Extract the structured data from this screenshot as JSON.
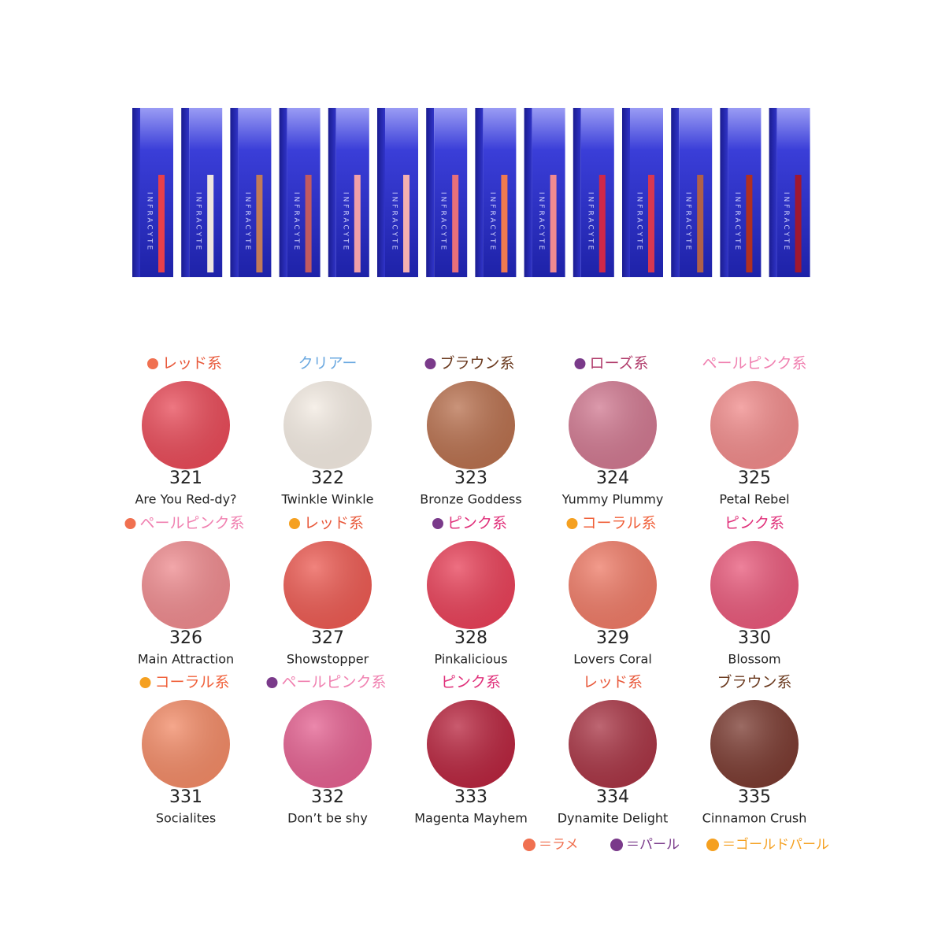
{
  "tube_brand": "INFRACYTE",
  "swatches": [
    {
      "category": "レッド系",
      "label_color": "#e8583a",
      "dot": "#f07050",
      "number": "321",
      "name": "Are You Red-dy?",
      "color": "#e84a58"
    },
    {
      "category": "クリアー",
      "label_color": "#6aa8e0",
      "number": "322",
      "name": "Twinkle Winkle",
      "color": "#f3ebe2"
    },
    {
      "category": "ブラウン系",
      "label_color": "#6b3a1f",
      "dot": "#7a3a8a",
      "number": "323",
      "name": "Bronze Goddess",
      "color": "#b8704e"
    },
    {
      "category": "ローズ系",
      "label_color": "#b03a6a",
      "dot": "#7a3a8a",
      "number": "324",
      "name": "Yummy Plummy",
      "color": "#d07890"
    },
    {
      "category": "ペールピンク系",
      "label_color": "#f080b0",
      "number": "325",
      "name": "Petal Rebel",
      "color": "#f08a8a"
    },
    {
      "category": "ペールピンク系",
      "label_color": "#f080b0",
      "dot": "#f07050",
      "number": "326",
      "name": "Main Attraction",
      "color": "#ee8a8e"
    },
    {
      "category": "レッド系",
      "label_color": "#e8583a",
      "dot": "#f5a020",
      "number": "327",
      "name": "Showstopper",
      "color": "#ec5a52"
    },
    {
      "category": "ピンク系",
      "label_color": "#e0307a",
      "dot": "#7a3a8a",
      "number": "328",
      "name": "Pinkalicious",
      "color": "#e84058"
    },
    {
      "category": "コーラル系",
      "label_color": "#f0603a",
      "dot": "#f5a020",
      "number": "329",
      "name": "Lovers Coral",
      "color": "#ee7a66"
    },
    {
      "category": "ピンク系",
      "label_color": "#e0307a",
      "number": "330",
      "name": "Blossom",
      "color": "#e8587a"
    },
    {
      "category": "コーラル系",
      "label_color": "#f0603a",
      "dot": "#f5a020",
      "number": "331",
      "name": "Socialites",
      "color": "#f28a66"
    },
    {
      "category": "ペールピンク系",
      "label_color": "#f080b0",
      "dot": "#7a3a8a",
      "number": "332",
      "name": "Don’t be shy",
      "color": "#e46090"
    },
    {
      "category": "ピンク系",
      "label_color": "#e0307a",
      "number": "333",
      "name": "Magenta Mayhem",
      "color": "#b8243e"
    },
    {
      "category": "レッド系",
      "label_color": "#e8583a",
      "number": "334",
      "name": "Dynamite Delight",
      "color": "#a83444"
    },
    {
      "category": "ブラウン系",
      "label_color": "#6b3a1f",
      "number": "335",
      "name": "Cinnamon Crush",
      "color": "#7a3a30"
    }
  ],
  "legend": [
    {
      "dot": "#f07050",
      "label": "＝ラメ",
      "label_color": "#f07050"
    },
    {
      "dot": "#7a3a8a",
      "label": "＝パール",
      "label_color": "#7a3a8a"
    },
    {
      "dot": "#f5a020",
      "label": "＝ゴールドパール",
      "label_color": "#f5a020"
    }
  ]
}
